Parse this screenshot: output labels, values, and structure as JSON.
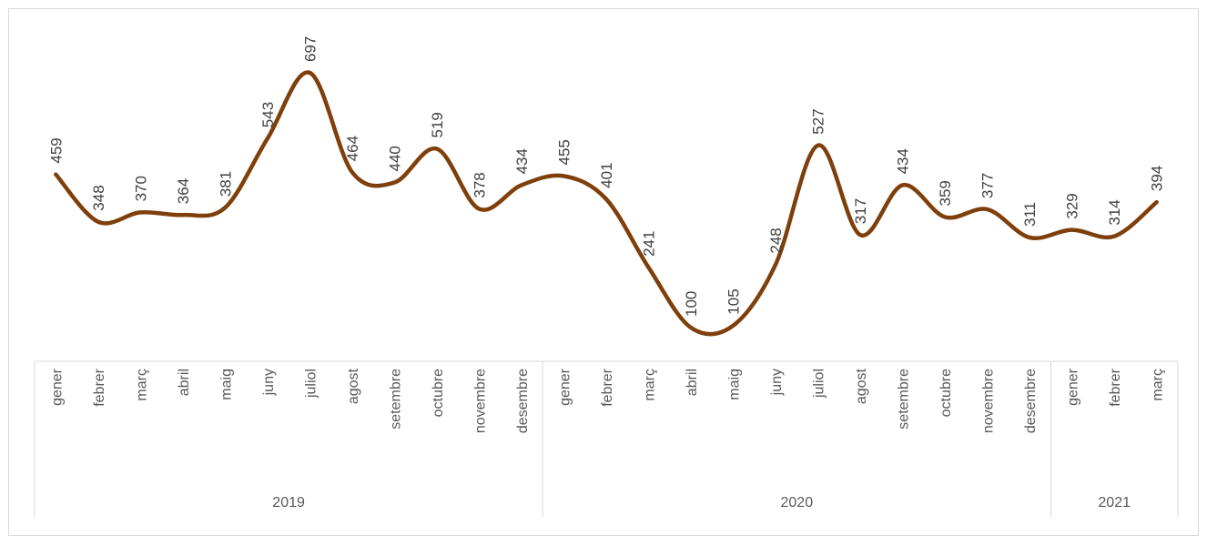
{
  "chart_data": {
    "type": "line",
    "title": "",
    "xlabel": "",
    "ylabel": "",
    "ylim": [
      0,
      800
    ],
    "grid": false,
    "legend": "none",
    "line_color": "#7f3f0b",
    "years": [
      {
        "label": "2019",
        "months": 12
      },
      {
        "label": "2020",
        "months": 12
      },
      {
        "label": "2021",
        "months": 3
      }
    ],
    "categories": [
      "gener",
      "febrer",
      "març",
      "abril",
      "maig",
      "juny",
      "juliol",
      "agost",
      "setembre",
      "octubre",
      "novembre",
      "desembre",
      "gener",
      "febrer",
      "març",
      "abril",
      "maig",
      "juny",
      "juliol",
      "agost",
      "setembre",
      "octubre",
      "novembre",
      "desembre",
      "gener",
      "febrer",
      "març"
    ],
    "series": [
      {
        "values": [
          459,
          348,
          370,
          364,
          381,
          543,
          697,
          464,
          440,
          519,
          378,
          434,
          455,
          401,
          241,
          100,
          105,
          248,
          527,
          317,
          434,
          359,
          377,
          311,
          329,
          314,
          394
        ]
      }
    ],
    "data_labels": [
      "459",
      "348",
      "370",
      "364",
      "381",
      "543",
      "697",
      "464",
      "440",
      "519",
      "378",
      "434",
      "455",
      "401",
      "241",
      "100",
      "105",
      "248",
      "527",
      "317",
      "434",
      "359",
      "377",
      "311",
      "329",
      "314",
      "394"
    ]
  }
}
